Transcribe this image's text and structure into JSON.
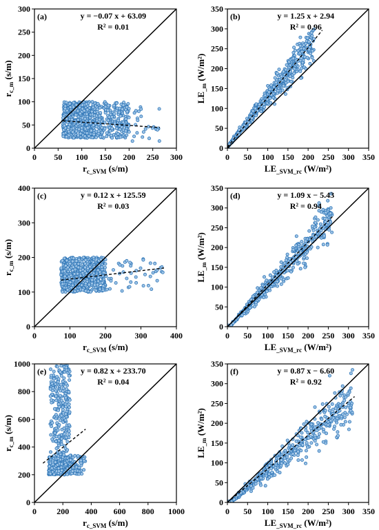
{
  "chart_data": [
    {
      "type": "scatter",
      "panel_label": "(a)",
      "equation": "y = −0.07 x + 63.09",
      "r2": "R² = 0.01",
      "xlabel_main": "r",
      "xlabel_sub": "c_SVM",
      "xlabel_unit": " (s/m)",
      "ylabel_main": "r",
      "ylabel_sub": "c_m",
      "ylabel_unit": " (s/m)",
      "xlim": [
        0,
        300
      ],
      "ylim": [
        0,
        300
      ],
      "xticks": [
        0,
        50,
        100,
        150,
        200,
        250,
        300
      ],
      "yticks": [
        0,
        50,
        100,
        150,
        200,
        250,
        300
      ],
      "fit": {
        "slope": -0.07,
        "intercept": 63.09,
        "x_range": [
          60,
          265
        ]
      },
      "cloud": [
        {
          "n": 500,
          "x": [
            60,
            130
          ],
          "y": [
            22,
            100
          ]
        },
        {
          "n": 240,
          "x": [
            130,
            200
          ],
          "y": [
            22,
            100
          ]
        },
        {
          "n": 25,
          "x": [
            200,
            265
          ],
          "y": [
            15,
            95
          ]
        }
      ]
    },
    {
      "type": "scatter",
      "panel_label": "(b)",
      "equation": "y = 1.25 x + 2.94",
      "r2": "R² = 0.96",
      "xlabel_main": "LE",
      "xlabel_sub": "_SVM_rc",
      "xlabel_unit": " (W/m²)",
      "ylabel_main": "LE",
      "ylabel_sub": "_m",
      "ylabel_unit": " (W/m²)",
      "xlim": [
        0,
        350
      ],
      "ylim": [
        0,
        350
      ],
      "xticks": [
        0,
        50,
        100,
        150,
        200,
        250,
        300,
        350
      ],
      "yticks": [
        0,
        50,
        100,
        150,
        200,
        250,
        300,
        350
      ],
      "fit": {
        "slope": 1.25,
        "intercept": 2.94,
        "x_range": [
          0,
          235
        ]
      },
      "cloud": [
        {
          "n": 560,
          "x": [
            0,
            215
          ],
          "slope": 1.25,
          "intercept": 2.94,
          "spread": 0.09
        }
      ]
    },
    {
      "type": "scatter",
      "panel_label": "(c)",
      "equation": "y = 0.12 x + 125.59",
      "r2": "R² = 0.03",
      "xlabel_main": "r",
      "xlabel_sub": "c_SVM",
      "xlabel_unit": " (s/m)",
      "ylabel_main": "r",
      "ylabel_sub": "c_m",
      "ylabel_unit": " (s/m)",
      "xlim": [
        0,
        400
      ],
      "ylim": [
        0,
        400
      ],
      "xticks": [
        0,
        100,
        200,
        300,
        400
      ],
      "yticks": [
        0,
        100,
        200,
        300,
        400
      ],
      "fit": {
        "slope": 0.12,
        "intercept": 125.59,
        "x_range": [
          75,
          365
        ]
      },
      "cloud": [
        {
          "n": 620,
          "x": [
            75,
            200
          ],
          "y": [
            100,
            200
          ]
        },
        {
          "n": 45,
          "x": [
            200,
            365
          ],
          "y": [
            100,
            200
          ]
        }
      ]
    },
    {
      "type": "scatter",
      "panel_label": "(d)",
      "equation": "y = 1.09 x − 5.43",
      "r2": "R² = 0.94",
      "xlabel_main": "LE",
      "xlabel_sub": "_SVM_rc",
      "xlabel_unit": " (W/m²)",
      "ylabel_main": "LE",
      "ylabel_sub": "_m",
      "ylabel_unit": " (W/m²)",
      "xlim": [
        0,
        350
      ],
      "ylim": [
        0,
        350
      ],
      "xticks": [
        0,
        50,
        100,
        150,
        200,
        250,
        300,
        350
      ],
      "yticks": [
        0,
        50,
        100,
        150,
        200,
        250,
        300,
        350
      ],
      "fit": {
        "slope": 1.09,
        "intercept": -5.43,
        "x_range": [
          0,
          260
        ]
      },
      "cloud": [
        {
          "n": 560,
          "x": [
            0,
            260
          ],
          "slope": 1.09,
          "intercept": -5.43,
          "spread": 0.1
        }
      ]
    },
    {
      "type": "scatter",
      "panel_label": "(e)",
      "equation": "y = 0.82 x + 233.70",
      "r2": "R² = 0.04",
      "xlabel_main": "r",
      "xlabel_sub": "c_SVM",
      "xlabel_unit": " (s/m)",
      "ylabel_main": "r",
      "ylabel_sub": "c_m",
      "ylabel_unit": " (s/m)",
      "xlim": [
        0,
        1000
      ],
      "ylim": [
        0,
        1000
      ],
      "xticks": [
        0,
        200,
        400,
        600,
        800,
        1000
      ],
      "yticks": [
        0,
        200,
        400,
        600,
        800,
        1000
      ],
      "fit": {
        "slope": 0.82,
        "intercept": 233.7,
        "x_range": [
          60,
          360
        ]
      },
      "cloud": [
        {
          "n": 480,
          "x": [
            100,
            260
          ],
          "y": [
            200,
            330
          ]
        },
        {
          "n": 260,
          "x": [
            110,
            250
          ],
          "y": [
            330,
            990
          ]
        },
        {
          "n": 60,
          "x": [
            250,
            360
          ],
          "y": [
            200,
            340
          ]
        }
      ]
    },
    {
      "type": "scatter",
      "panel_label": "(f)",
      "equation": "y = 0.87 x − 6.60",
      "r2": "R² = 0.92",
      "xlabel_main": "LE",
      "xlabel_sub": "_SVM_rc",
      "xlabel_unit": " (W/m²)",
      "ylabel_main": "LE",
      "ylabel_sub": "_m",
      "ylabel_unit": " (W/m²)",
      "xlim": [
        0,
        350
      ],
      "ylim": [
        0,
        350
      ],
      "xticks": [
        0,
        50,
        100,
        150,
        200,
        250,
        300,
        350
      ],
      "yticks": [
        0,
        50,
        100,
        150,
        200,
        250,
        300,
        350
      ],
      "fit": {
        "slope": 0.87,
        "intercept": -6.6,
        "x_range": [
          0,
          315
        ]
      },
      "cloud": [
        {
          "n": 520,
          "x": [
            0,
            310
          ],
          "slope": 0.87,
          "intercept": -6.6,
          "spread": 0.13
        }
      ]
    }
  ]
}
